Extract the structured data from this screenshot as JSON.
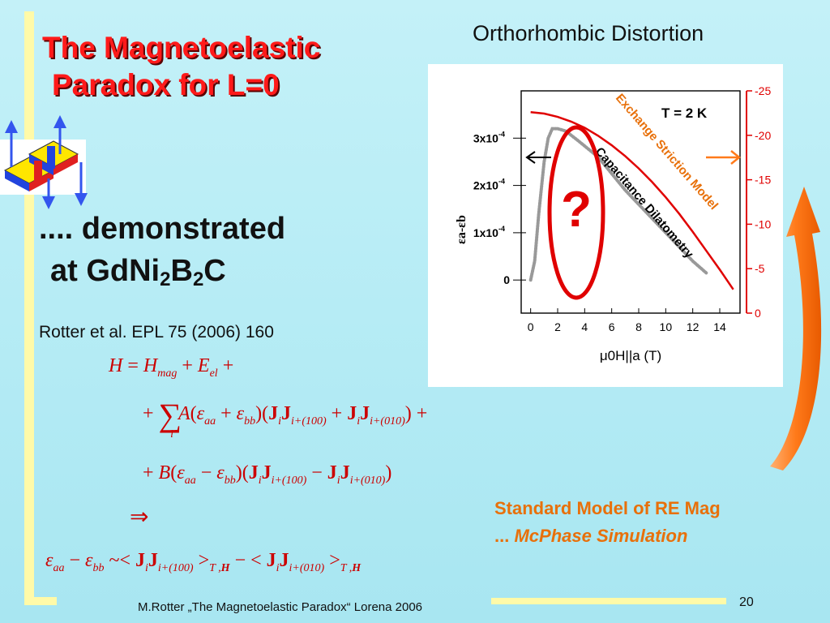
{
  "slide": {
    "title_line1": "The Magnetoelastic",
    "title_line2": "Paradox for L=0",
    "heading_right": "Orthorhombic Distortion",
    "demo_line1": ".... demonstrated",
    "demo_line2_pre": "at GdNi",
    "demo_sub1": "2",
    "demo_mid": "B",
    "demo_sub2": "2",
    "demo_post": "C",
    "reference": "Rotter et al. EPL 75 (2006) 160",
    "standard_model_line1": "Standard Model of RE Mag",
    "standard_model_prefix": "... ",
    "standard_model_line2": "McPhase Simulation",
    "footer": "M.Rotter „The Magnetoelastic Paradox“ Lorena 2006",
    "page_number": "20"
  },
  "colors": {
    "title_red": "#ff1a1a",
    "equation_red": "#cc0000",
    "accent_orange": "#e8700a",
    "background": "#b6ecf5"
  },
  "chart_data": {
    "type": "line",
    "xlabel": "μ0H||a  (T)",
    "ylabel_left": "εa-εb",
    "ylabel_right_note": "right axis unlabeled, ticks in units of 10^-4 (inverted)",
    "xlim": [
      -0.7,
      15.5
    ],
    "x_ticks": [
      0,
      2,
      4,
      6,
      8,
      10,
      12,
      14
    ],
    "ylim_left": [
      -7e-05,
      0.0004
    ],
    "y_ticks_left": [
      {
        "value": 0,
        "label": "0"
      },
      {
        "value": 0.0001,
        "label": "1x10",
        "exp": "-4"
      },
      {
        "value": 0.0002,
        "label": "2x10",
        "exp": "-4"
      },
      {
        "value": 0.0003,
        "label": "3x10",
        "exp": "-4"
      }
    ],
    "y_ticks_right": [
      "0",
      "-5",
      "-10",
      "-15",
      "-20",
      "-25"
    ],
    "annotation_temperature": "T = 2 K",
    "annotation_question": "?",
    "series": [
      {
        "name": "Capacitance Dilatometry",
        "color": "#999999",
        "x": [
          0,
          0.3,
          0.6,
          1.0,
          1.3,
          1.6,
          2.0,
          2.6,
          3.5,
          5.0,
          7.0,
          9.0,
          10.0,
          11.0,
          12.0,
          13.0
        ],
        "y": [
          0.0,
          4e-05,
          0.00014,
          0.00025,
          0.0003,
          0.00032,
          0.00032,
          0.000315,
          0.000295,
          0.00026,
          0.00019,
          0.00013,
          0.0001,
          7e-05,
          4e-05,
          1.5e-05
        ]
      },
      {
        "name": "Exchange Striction Model",
        "color": "#e00000",
        "x": [
          0,
          1,
          2,
          3,
          4,
          5,
          6,
          7,
          8,
          9,
          10,
          11,
          12,
          13,
          14,
          15
        ],
        "y": [
          0.000355,
          0.000352,
          0.000345,
          0.000335,
          0.000322,
          0.000305,
          0.000285,
          0.000262,
          0.000236,
          0.000207,
          0.000175,
          0.00014,
          0.000102,
          6.2e-05,
          2.2e-05,
          -2e-05
        ]
      }
    ]
  }
}
